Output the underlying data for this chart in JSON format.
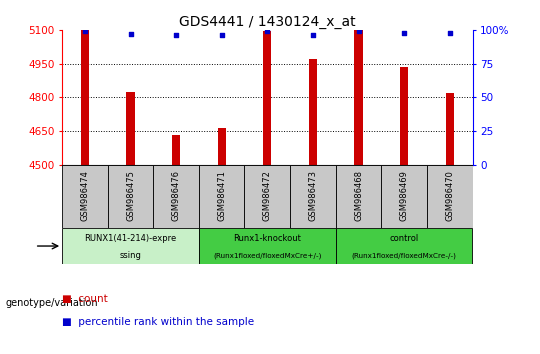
{
  "title": "GDS4441 / 1430124_x_at",
  "samples": [
    "GSM986474",
    "GSM986475",
    "GSM986476",
    "GSM986471",
    "GSM986472",
    "GSM986473",
    "GSM986468",
    "GSM986469",
    "GSM986470"
  ],
  "counts": [
    5100,
    4825,
    4630,
    4665,
    5095,
    4970,
    5100,
    4935,
    4820
  ],
  "percentile_ranks": [
    99,
    97,
    96,
    96,
    99,
    96,
    99,
    98,
    98
  ],
  "ylim_left": [
    4500,
    5100
  ],
  "ylim_right": [
    0,
    100
  ],
  "yticks_left": [
    4500,
    4650,
    4800,
    4950,
    5100
  ],
  "ytick_labels_right": [
    "0",
    "25",
    "50",
    "75",
    "100%"
  ],
  "yticks_right": [
    0,
    25,
    50,
    75,
    100
  ],
  "bar_color": "#cc0000",
  "dot_color": "#0000cc",
  "grid_color": "#000000",
  "bg_color": "#ffffff",
  "sample_box_color": "#c8c8c8",
  "group1_color": "#c8f0c8",
  "group2_color": "#44cc44",
  "legend_count_label": "count",
  "legend_pct_label": "percentile rank within the sample",
  "genotype_label": "genotype/variation",
  "bar_width": 0.18
}
